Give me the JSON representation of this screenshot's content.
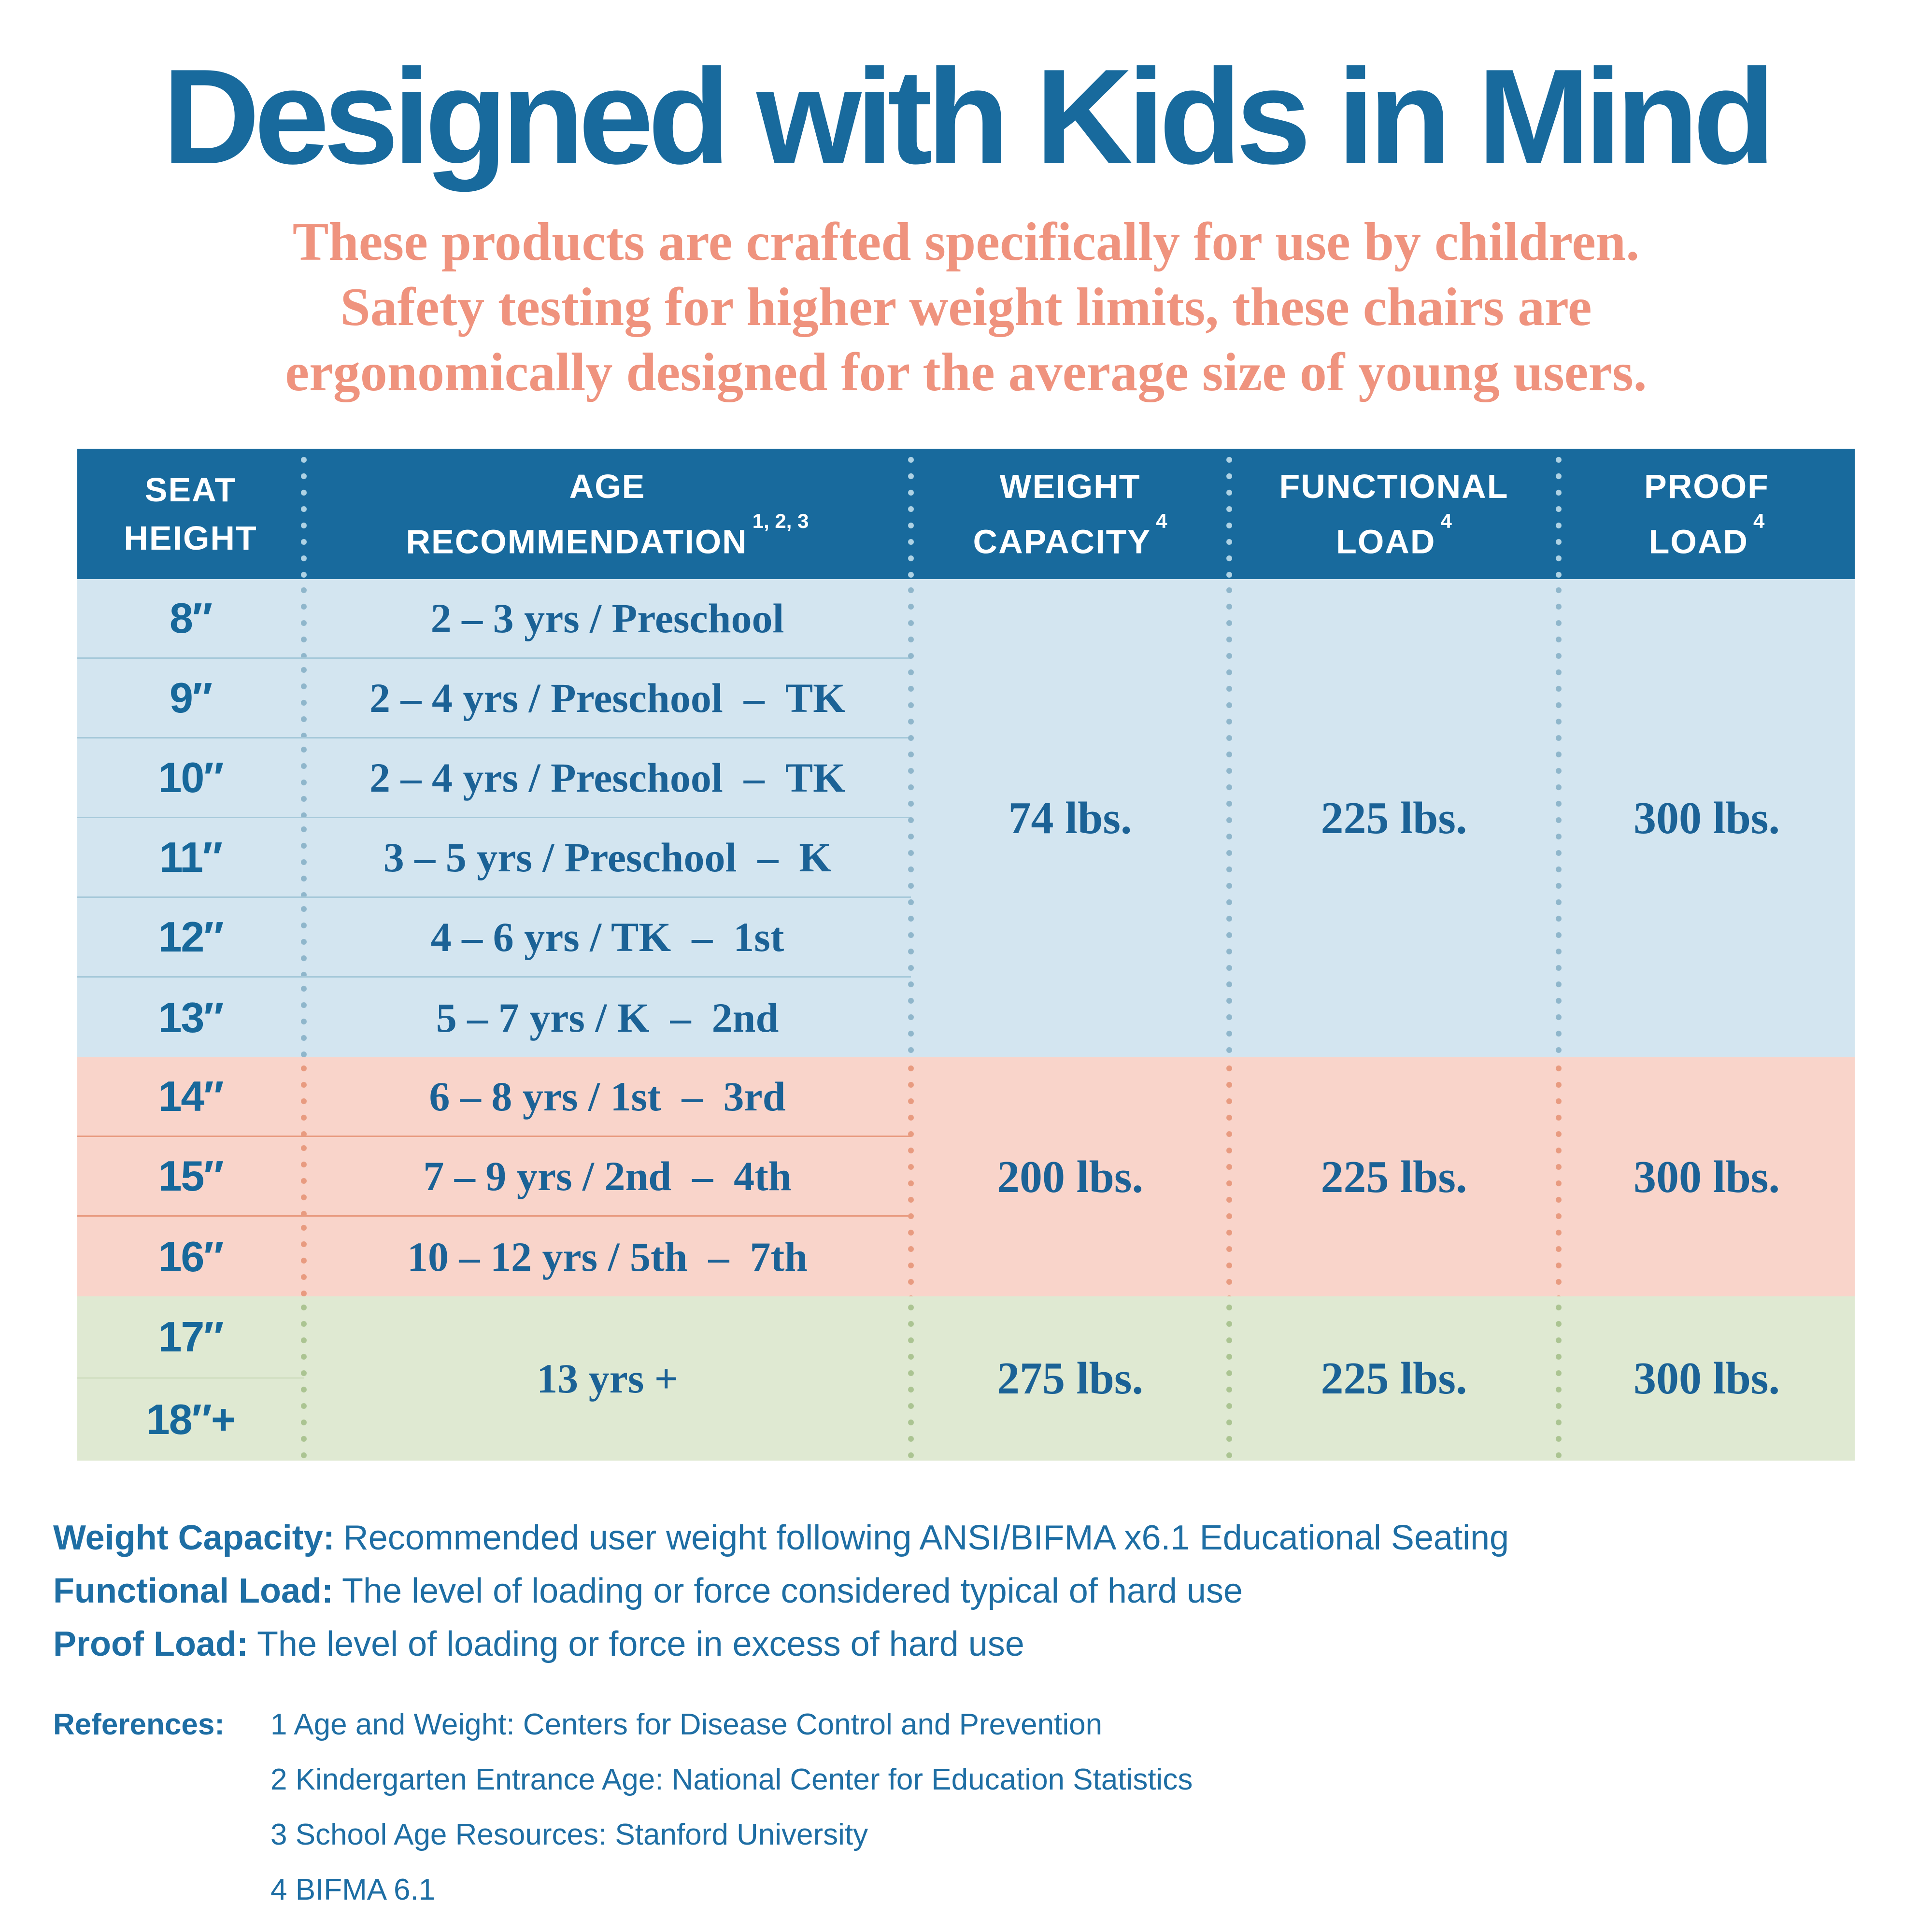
{
  "title": "Designed with Kids in Mind",
  "subtitle_lines": [
    "These products are crafted specifically for use by children.",
    "Safety testing for higher weight limits, these chairs are",
    "ergonomically designed for the average size of young users."
  ],
  "palette": {
    "header_blue": "#186a9d",
    "body_text_blue": "#1b6296",
    "footnote_blue": "#1e6ea4",
    "subtitle_salmon": "#ef937e",
    "band_blue_bg": "#d3e5f0",
    "band_pink_bg": "#f9d4ca",
    "band_green_bg": "#dfe9d2"
  },
  "table": {
    "headers": [
      {
        "line1": "SEAT",
        "line2": "HEIGHT",
        "sup": ""
      },
      {
        "line1": "AGE",
        "line2": "RECOMMENDATION",
        "sup": "1, 2, 3"
      },
      {
        "line1": "WEIGHT",
        "line2": "CAPACITY",
        "sup": "4"
      },
      {
        "line1": "FUNCTIONAL",
        "line2": "LOAD",
        "sup": "4"
      },
      {
        "line1": "PROOF",
        "line2": "LOAD",
        "sup": "4"
      }
    ],
    "groups": [
      {
        "rows": [
          {
            "height": "8″",
            "age": "2 – 3 yrs / Preschool"
          },
          {
            "height": "9″",
            "age": "2 – 4 yrs / Preschool – TK"
          },
          {
            "height": "10″",
            "age": "2 – 4 yrs / Preschool – TK"
          },
          {
            "height": "11″",
            "age": "3 – 5 yrs / Preschool – K"
          },
          {
            "height": "12″",
            "age": "4 – 6 yrs / TK – 1st"
          },
          {
            "height": "13″",
            "age": "5 – 7 yrs / K – 2nd"
          }
        ],
        "weight_capacity": "74 lbs.",
        "functional_load": "225 lbs.",
        "proof_load": "300 lbs."
      },
      {
        "rows": [
          {
            "height": "14″",
            "age": "6 – 8 yrs / 1st – 3rd"
          },
          {
            "height": "15″",
            "age": "7 – 9 yrs / 2nd – 4th"
          },
          {
            "height": "16″",
            "age": "10 – 12 yrs / 5th – 7th"
          }
        ],
        "weight_capacity": "200 lbs.",
        "functional_load": "225 lbs.",
        "proof_load": "300 lbs."
      },
      {
        "rows": [
          {
            "height": "17″"
          },
          {
            "height": "18″+"
          }
        ],
        "age": "13 yrs +",
        "weight_capacity": "275 lbs.",
        "functional_load": "225 lbs.",
        "proof_load": "300 lbs."
      }
    ]
  },
  "footnotes": [
    {
      "label": "Weight Capacity:",
      "text": "Recommended user weight following ANSI/BIFMA x6.1 Educational Seating"
    },
    {
      "label": "Functional Load:",
      "text": "The level of loading or force considered typical of hard use"
    },
    {
      "label": "Proof Load:",
      "text": "The level of loading or force in excess of hard use"
    }
  ],
  "references": {
    "label": "References:",
    "items": [
      "1 Age and Weight: Centers for Disease Control and Prevention",
      "2 Kindergarten Entrance Age: National Center for Education Statistics",
      "3 School Age Resources: Stanford University",
      "4 BIFMA 6.1"
    ]
  }
}
